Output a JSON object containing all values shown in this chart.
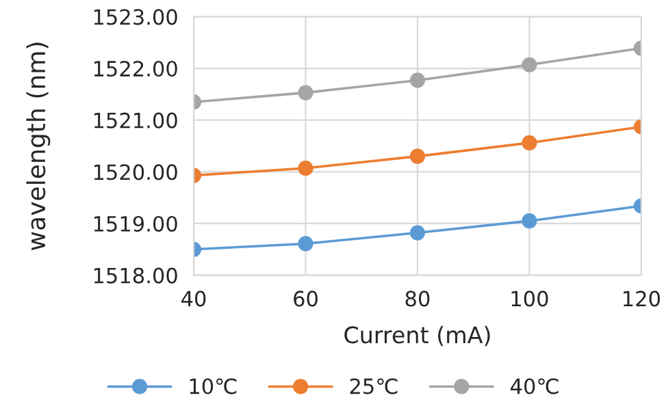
{
  "chart_data": {
    "type": "line",
    "xlabel": "Current (mA)",
    "ylabel": "wavelength (nm)",
    "x": [
      40,
      60,
      80,
      100,
      120
    ],
    "series": [
      {
        "name": "10℃",
        "color": "#5b9bd5",
        "values": [
          1518.5,
          1518.61,
          1518.82,
          1519.05,
          1519.34
        ]
      },
      {
        "name": "25℃",
        "color": "#ed7d31",
        "values": [
          1519.93,
          1520.07,
          1520.3,
          1520.56,
          1520.87
        ]
      },
      {
        "name": "40℃",
        "color": "#a5a5a5",
        "values": [
          1521.35,
          1521.53,
          1521.77,
          1522.07,
          1522.39
        ]
      }
    ],
    "xlim": [
      40,
      120
    ],
    "xticks": [
      40,
      60,
      80,
      100,
      120
    ],
    "ylim": [
      1518,
      1523
    ],
    "yticks": [
      {
        "value": 1518,
        "label": "1518.00"
      },
      {
        "value": 1519,
        "label": "1519.00"
      },
      {
        "value": 1520,
        "label": "1520.00"
      },
      {
        "value": 1521,
        "label": "1521.00"
      },
      {
        "value": 1522,
        "label": "1522.00"
      },
      {
        "value": 1523,
        "label": "1523.00"
      }
    ],
    "grid": true,
    "legend": "bottom",
    "marker": "circle",
    "line_style": "solid"
  }
}
